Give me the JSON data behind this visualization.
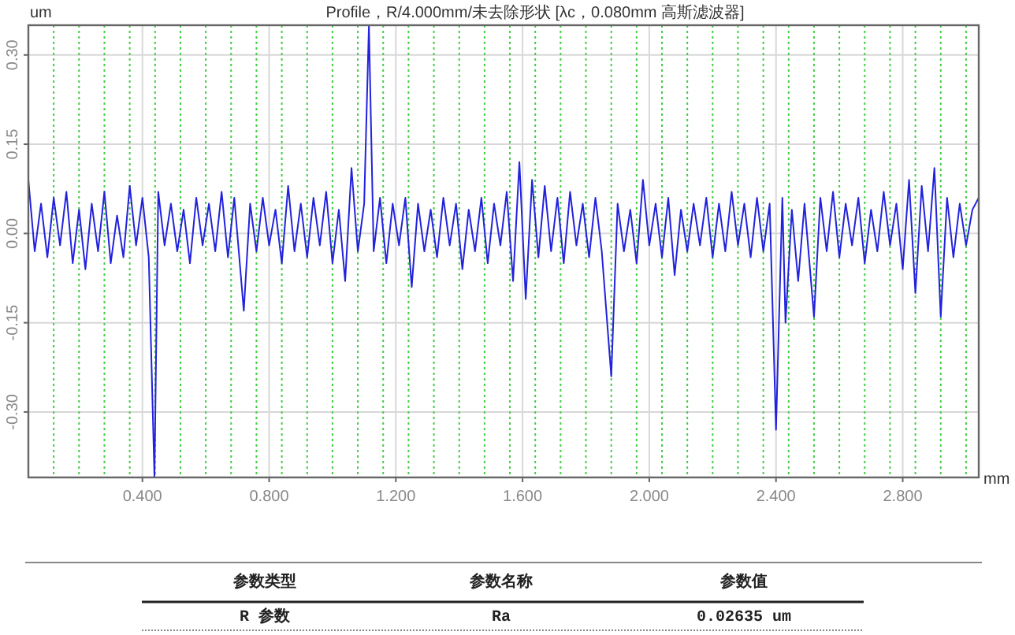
{
  "chart_data": {
    "type": "line",
    "title": "Profile，R/4.000mm/未去除形状 [λc，0.080mm 高斯滤波器]",
    "xlabel": "mm",
    "ylabel": "um",
    "xlim": [
      0.04,
      3.04
    ],
    "ylim": [
      -0.41,
      0.35
    ],
    "xticks": [
      {
        "value": 0.4,
        "label": "0.400"
      },
      {
        "value": 0.8,
        "label": "0.800"
      },
      {
        "value": 1.2,
        "label": "1.200"
      },
      {
        "value": 1.6,
        "label": "1.600"
      },
      {
        "value": 2.0,
        "label": "2.000"
      },
      {
        "value": 2.4,
        "label": "2.400"
      },
      {
        "value": 2.8,
        "label": "2.800"
      }
    ],
    "yticks": [
      {
        "value": 0.3,
        "label": "0.30"
      },
      {
        "value": 0.15,
        "label": "0.15"
      },
      {
        "value": 0,
        "label": "0.00"
      },
      {
        "value": -0.15,
        "label": "-0.15"
      },
      {
        "value": -0.3,
        "label": "-0.30"
      }
    ],
    "grid": true,
    "marker": "none",
    "line_style": "solid",
    "x": [
      0.04,
      0.06,
      0.08,
      0.1,
      0.12,
      0.14,
      0.16,
      0.18,
      0.2,
      0.22,
      0.24,
      0.26,
      0.28,
      0.3,
      0.32,
      0.34,
      0.36,
      0.38,
      0.4,
      0.42,
      0.438,
      0.45,
      0.47,
      0.49,
      0.51,
      0.53,
      0.55,
      0.57,
      0.59,
      0.61,
      0.63,
      0.65,
      0.67,
      0.69,
      0.72,
      0.74,
      0.76,
      0.78,
      0.8,
      0.82,
      0.84,
      0.86,
      0.88,
      0.9,
      0.92,
      0.94,
      0.96,
      0.98,
      1.0,
      1.02,
      1.04,
      1.06,
      1.08,
      1.1,
      1.115,
      1.13,
      1.15,
      1.17,
      1.19,
      1.21,
      1.23,
      1.25,
      1.27,
      1.29,
      1.31,
      1.33,
      1.35,
      1.37,
      1.39,
      1.41,
      1.43,
      1.45,
      1.47,
      1.49,
      1.51,
      1.53,
      1.55,
      1.57,
      1.59,
      1.61,
      1.63,
      1.65,
      1.67,
      1.69,
      1.71,
      1.73,
      1.75,
      1.77,
      1.79,
      1.81,
      1.83,
      1.85,
      1.88,
      1.9,
      1.92,
      1.94,
      1.96,
      1.98,
      2.0,
      2.02,
      2.04,
      2.06,
      2.08,
      2.1,
      2.12,
      2.14,
      2.16,
      2.18,
      2.2,
      2.22,
      2.24,
      2.26,
      2.28,
      2.3,
      2.32,
      2.34,
      2.36,
      2.38,
      2.4,
      2.42,
      2.43,
      2.45,
      2.47,
      2.49,
      2.52,
      2.54,
      2.56,
      2.58,
      2.6,
      2.62,
      2.64,
      2.66,
      2.68,
      2.7,
      2.72,
      2.74,
      2.76,
      2.78,
      2.8,
      2.82,
      2.84,
      2.86,
      2.88,
      2.9,
      2.92,
      2.94,
      2.96,
      2.98,
      3.0,
      3.02,
      3.04
    ],
    "series": [
      {
        "color": "#2222dd",
        "values": [
          0.09,
          -0.03,
          0.05,
          -0.04,
          0.06,
          -0.02,
          0.07,
          -0.05,
          0.04,
          -0.06,
          0.05,
          -0.03,
          0.07,
          -0.05,
          0.03,
          -0.04,
          0.08,
          -0.02,
          0.06,
          -0.04,
          -0.41,
          0.07,
          -0.02,
          0.05,
          -0.03,
          0.04,
          -0.05,
          0.06,
          -0.02,
          0.05,
          -0.03,
          0.07,
          -0.04,
          0.06,
          -0.13,
          0.05,
          -0.03,
          0.06,
          -0.02,
          0.04,
          -0.05,
          0.08,
          -0.03,
          0.05,
          -0.04,
          0.06,
          -0.02,
          0.07,
          -0.05,
          0.04,
          -0.08,
          0.11,
          -0.03,
          0.05,
          0.35,
          -0.03,
          0.06,
          -0.05,
          0.05,
          -0.02,
          0.06,
          -0.09,
          0.05,
          -0.03,
          0.04,
          -0.04,
          0.06,
          -0.02,
          0.05,
          -0.06,
          0.04,
          -0.03,
          0.06,
          -0.05,
          0.05,
          -0.02,
          0.07,
          -0.08,
          0.12,
          -0.11,
          0.09,
          -0.04,
          0.08,
          -0.03,
          0.06,
          -0.05,
          0.07,
          -0.02,
          0.05,
          -0.04,
          0.06,
          -0.03,
          -0.24,
          0.05,
          -0.03,
          0.04,
          -0.05,
          0.09,
          -0.02,
          0.05,
          -0.04,
          0.06,
          -0.07,
          0.04,
          -0.03,
          0.05,
          -0.02,
          0.06,
          -0.04,
          0.05,
          -0.03,
          0.07,
          -0.02,
          0.05,
          -0.04,
          0.06,
          -0.03,
          0.05,
          -0.33,
          0.06,
          -0.15,
          0.04,
          -0.08,
          0.05,
          -0.14,
          0.06,
          -0.03,
          0.07,
          -0.04,
          0.05,
          -0.02,
          0.06,
          -0.05,
          0.04,
          -0.03,
          0.07,
          -0.02,
          0.05,
          -0.06,
          0.09,
          -0.1,
          0.08,
          -0.03,
          0.11,
          -0.14,
          0.06,
          -0.04,
          0.05,
          -0.02,
          0.04,
          0.06
        ]
      }
    ],
    "ref_lines": [
      {
        "axis": "x",
        "value": 0.12,
        "color": "#44cc44",
        "line_style": "dotted"
      },
      {
        "axis": "x",
        "value": 0.2,
        "color": "#44cc44",
        "line_style": "dotted"
      },
      {
        "axis": "x",
        "value": 0.28,
        "color": "#44cc44",
        "line_style": "dotted"
      },
      {
        "axis": "x",
        "value": 0.36,
        "color": "#44cc44",
        "line_style": "dotted"
      },
      {
        "axis": "x",
        "value": 0.44,
        "color": "#44cc44",
        "line_style": "dotted"
      },
      {
        "axis": "x",
        "value": 0.52,
        "color": "#44cc44",
        "line_style": "dotted"
      },
      {
        "axis": "x",
        "value": 0.6,
        "color": "#44cc44",
        "line_style": "dotted"
      },
      {
        "axis": "x",
        "value": 0.68,
        "color": "#44cc44",
        "line_style": "dotted"
      },
      {
        "axis": "x",
        "value": 0.76,
        "color": "#44cc44",
        "line_style": "dotted"
      },
      {
        "axis": "x",
        "value": 0.84,
        "color": "#44cc44",
        "line_style": "dotted"
      },
      {
        "axis": "x",
        "value": 0.92,
        "color": "#44cc44",
        "line_style": "dotted"
      },
      {
        "axis": "x",
        "value": 1.0,
        "color": "#44cc44",
        "line_style": "dotted"
      },
      {
        "axis": "x",
        "value": 1.08,
        "color": "#44cc44",
        "line_style": "dotted"
      },
      {
        "axis": "x",
        "value": 1.16,
        "color": "#44cc44",
        "line_style": "dotted"
      },
      {
        "axis": "x",
        "value": 1.24,
        "color": "#44cc44",
        "line_style": "dotted"
      },
      {
        "axis": "x",
        "value": 1.32,
        "color": "#44cc44",
        "line_style": "dotted"
      },
      {
        "axis": "x",
        "value": 1.4,
        "color": "#44cc44",
        "line_style": "dotted"
      },
      {
        "axis": "x",
        "value": 1.48,
        "color": "#44cc44",
        "line_style": "dotted"
      },
      {
        "axis": "x",
        "value": 1.56,
        "color": "#44cc44",
        "line_style": "dotted"
      },
      {
        "axis": "x",
        "value": 1.64,
        "color": "#44cc44",
        "line_style": "dotted"
      },
      {
        "axis": "x",
        "value": 1.72,
        "color": "#44cc44",
        "line_style": "dotted"
      },
      {
        "axis": "x",
        "value": 1.8,
        "color": "#44cc44",
        "line_style": "dotted"
      },
      {
        "axis": "x",
        "value": 1.88,
        "color": "#44cc44",
        "line_style": "dotted"
      },
      {
        "axis": "x",
        "value": 1.96,
        "color": "#44cc44",
        "line_style": "dotted"
      },
      {
        "axis": "x",
        "value": 2.04,
        "color": "#44cc44",
        "line_style": "dotted"
      },
      {
        "axis": "x",
        "value": 2.12,
        "color": "#44cc44",
        "line_style": "dotted"
      },
      {
        "axis": "x",
        "value": 2.2,
        "color": "#44cc44",
        "line_style": "dotted"
      },
      {
        "axis": "x",
        "value": 2.28,
        "color": "#44cc44",
        "line_style": "dotted"
      },
      {
        "axis": "x",
        "value": 2.36,
        "color": "#44cc44",
        "line_style": "dotted"
      },
      {
        "axis": "x",
        "value": 2.44,
        "color": "#44cc44",
        "line_style": "dotted"
      },
      {
        "axis": "x",
        "value": 2.52,
        "color": "#44cc44",
        "line_style": "dotted"
      },
      {
        "axis": "x",
        "value": 2.6,
        "color": "#44cc44",
        "line_style": "dotted"
      },
      {
        "axis": "x",
        "value": 2.68,
        "color": "#44cc44",
        "line_style": "dotted"
      },
      {
        "axis": "x",
        "value": 2.76,
        "color": "#44cc44",
        "line_style": "dotted"
      },
      {
        "axis": "x",
        "value": 2.84,
        "color": "#44cc44",
        "line_style": "dotted"
      },
      {
        "axis": "x",
        "value": 2.92,
        "color": "#44cc44",
        "line_style": "dotted"
      },
      {
        "axis": "x",
        "value": 3.0,
        "color": "#44cc44",
        "line_style": "dotted"
      }
    ],
    "annotations": [
      "参数类型",
      "参数名称",
      "参数值",
      "R 参数",
      "Ra",
      "0.02635 um"
    ]
  }
}
